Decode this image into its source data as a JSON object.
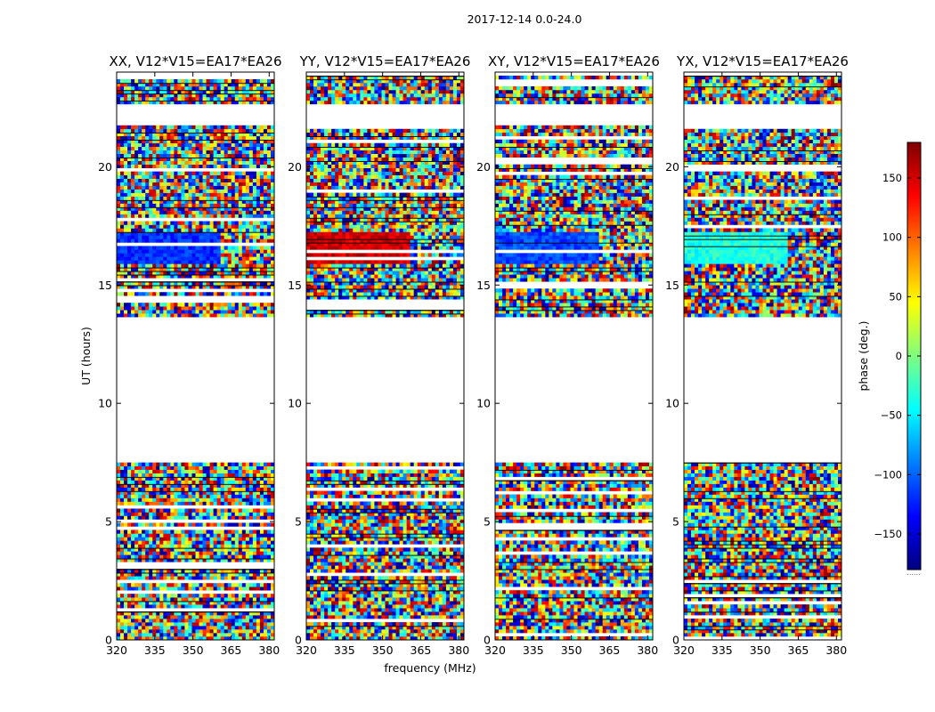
{
  "figure": {
    "suptitle": "2017-12-14 0.0-24.0",
    "xlabel": "frequency (MHz)",
    "ylabel": "UT (hours)",
    "colorbar_label": "phase (deg.)",
    "colorbar_corner_text": "......"
  },
  "chart_data": {
    "type": "heatmap",
    "title": "2017-12-14 0.0-24.0",
    "xlabel": "frequency (MHz)",
    "ylabel": "UT (hours)",
    "xlim": [
      320,
      382
    ],
    "ylim": [
      0,
      24
    ],
    "x_ticks": [
      320,
      335,
      350,
      365,
      380
    ],
    "x_tick_labels": [
      "320",
      "335",
      "350",
      "365",
      "380"
    ],
    "y_ticks": [
      0,
      5,
      10,
      15,
      20
    ],
    "y_tick_labels": [
      "0",
      "5",
      "10",
      "15",
      "20"
    ],
    "colorbar": {
      "label": "phase (deg.)",
      "range": [
        -180,
        180
      ],
      "ticks": [
        150,
        100,
        50,
        0,
        -50,
        -100,
        -150
      ],
      "tick_labels": [
        "150",
        "100",
        "50",
        "0",
        "−50",
        "−100",
        "−150"
      ],
      "colormap": [
        "#00007f",
        "#0000ff",
        "#007fff",
        "#00ffff",
        "#7fff7f",
        "#ffff00",
        "#ff7f00",
        "#ff0000",
        "#7f0000"
      ]
    },
    "observed_time_ranges_hours": [
      [
        0.0,
        7.5
      ],
      [
        13.7,
        23.9
      ]
    ],
    "flagged_time_ranges_hours": [
      [
        7.5,
        13.7
      ],
      [
        21.8,
        22.6
      ]
    ],
    "panels": [
      {
        "title": "XX, V12*V15=EA17*EA26",
        "polarization": "XX",
        "mean_phase_16_17h": -120
      },
      {
        "title": "YY, V12*V15=EA17*EA26",
        "polarization": "YY",
        "mean_phase_16_17h": 150
      },
      {
        "title": "XY, V12*V15=EA17*EA26",
        "polarization": "XY",
        "mean_phase_16_17h": -110
      },
      {
        "title": "YX, V12*V15=EA17*EA26",
        "polarization": "YX",
        "mean_phase_16_17h": -35
      }
    ]
  }
}
